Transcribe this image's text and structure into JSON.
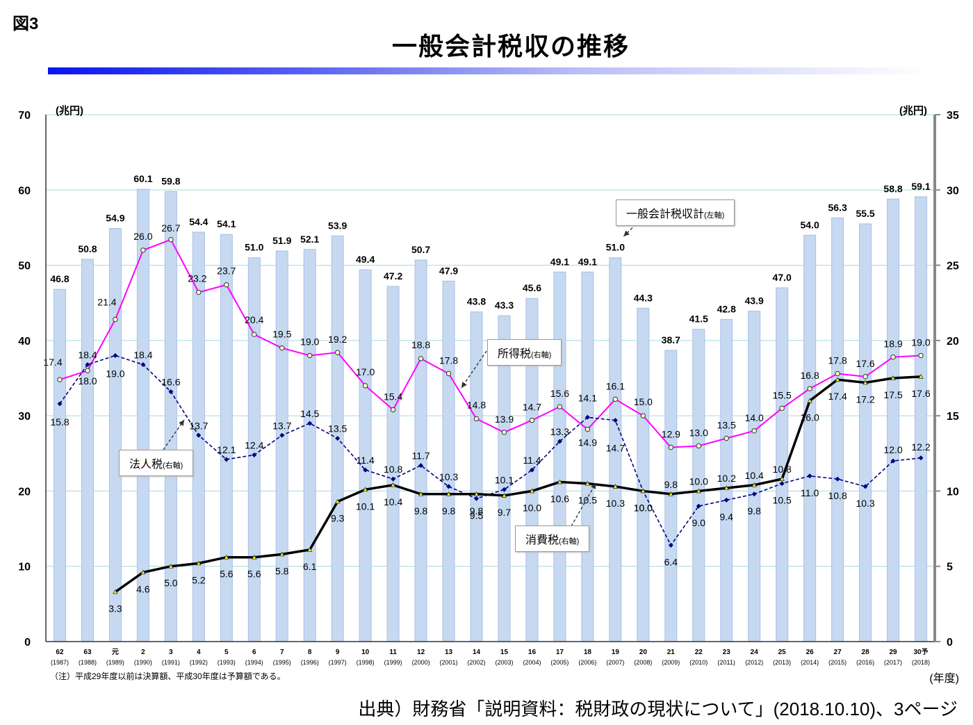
{
  "figure_label": "図3",
  "title": "一般会計税収の推移",
  "note": "（注）平成29年度以前は決算額、平成30年度は予算額である。",
  "source": "出典）財務省「説明資料：税財政の現状について」(2018.10.10)、3ページ",
  "colors": {
    "bar": "#c6d9f1",
    "bar_edge": "#a7c0e6",
    "income_tax": "#ff00ff",
    "corporate_tax": "#000080",
    "consumption_tax": "#000000",
    "gridline": "#9fdcdc"
  },
  "callouts": {
    "total": {
      "label": "一般会計税収計",
      "axis_note": "(左軸)"
    },
    "income": {
      "label": "所得税",
      "axis_note": "(右軸)"
    },
    "corporate": {
      "label": "法人税",
      "axis_note": "(右軸)"
    },
    "consumption": {
      "label": "消費税",
      "axis_note": "(右軸)"
    }
  },
  "chart_data": {
    "type": "bar",
    "title": "一般会計税収の推移",
    "xlabel": "(年度)",
    "ylabel_left": "(兆円)",
    "ylabel_right": "(兆円)",
    "ylim_left": [
      0,
      70
    ],
    "ylim_right": [
      0,
      35
    ],
    "yticks_left": [
      0,
      10,
      20,
      30,
      40,
      50,
      60,
      70
    ],
    "yticks_right": [
      0,
      5,
      10,
      15,
      20,
      25,
      30,
      35
    ],
    "grid": true,
    "categories": [
      "62",
      "63",
      "元",
      "2",
      "3",
      "4",
      "5",
      "6",
      "7",
      "8",
      "9",
      "10",
      "11",
      "12",
      "13",
      "14",
      "15",
      "16",
      "17",
      "18",
      "19",
      "20",
      "21",
      "22",
      "23",
      "24",
      "25",
      "26",
      "27",
      "28",
      "29",
      "30予"
    ],
    "categories_western": [
      "(1987)",
      "(1988)",
      "(1989)",
      "(1990)",
      "(1991)",
      "(1992)",
      "(1993)",
      "(1994)",
      "(1995)",
      "(1996)",
      "(1997)",
      "(1998)",
      "(1999)",
      "(2000)",
      "(2001)",
      "(2002)",
      "(2003)",
      "(2004)",
      "(2005)",
      "(2006)",
      "(2007)",
      "(2008)",
      "(2009)",
      "(2010)",
      "(2011)",
      "(2012)",
      "(2013)",
      "(2014)",
      "(2015)",
      "(2016)",
      "(2017)",
      "(2018)"
    ],
    "series": [
      {
        "name": "一般会計税収計",
        "axis": "left",
        "type": "bar",
        "values": [
          46.8,
          50.8,
          54.9,
          60.1,
          59.8,
          54.4,
          54.1,
          51.0,
          51.9,
          52.1,
          53.9,
          49.4,
          47.2,
          50.7,
          47.9,
          43.8,
          43.3,
          45.6,
          49.1,
          49.1,
          51.0,
          44.3,
          38.7,
          41.5,
          42.8,
          43.9,
          47.0,
          54.0,
          56.3,
          55.5,
          58.8,
          59.1
        ]
      },
      {
        "name": "所得税",
        "axis": "right",
        "type": "line",
        "values": [
          17.4,
          18.0,
          21.4,
          26.0,
          26.7,
          23.2,
          23.7,
          20.4,
          19.5,
          19.0,
          19.2,
          17.0,
          15.4,
          18.8,
          17.8,
          14.8,
          13.9,
          14.7,
          15.6,
          14.1,
          16.1,
          15.0,
          12.9,
          13.0,
          13.5,
          14.0,
          15.5,
          16.8,
          17.8,
          17.6,
          18.9,
          19.0
        ]
      },
      {
        "name": "法人税",
        "axis": "right",
        "type": "line",
        "style": "dashed",
        "values": [
          15.8,
          18.4,
          19.0,
          18.4,
          16.6,
          13.7,
          12.1,
          12.4,
          13.7,
          14.5,
          13.5,
          11.4,
          10.8,
          11.7,
          10.3,
          9.5,
          10.1,
          11.4,
          13.3,
          14.9,
          14.7,
          10.0,
          6.4,
          9.0,
          9.4,
          9.8,
          10.5,
          11.0,
          10.8,
          10.3,
          12.0,
          12.2
        ]
      },
      {
        "name": "消費税",
        "axis": "right",
        "type": "line",
        "values": [
          null,
          null,
          3.3,
          4.6,
          5.0,
          5.2,
          5.6,
          5.6,
          5.8,
          6.1,
          9.3,
          10.1,
          10.4,
          9.8,
          9.8,
          9.8,
          9.7,
          10.0,
          10.6,
          10.5,
          10.3,
          10.0,
          9.8,
          10.0,
          10.2,
          10.4,
          10.8,
          16.0,
          17.4,
          17.2,
          17.5,
          17.6
        ]
      }
    ]
  }
}
